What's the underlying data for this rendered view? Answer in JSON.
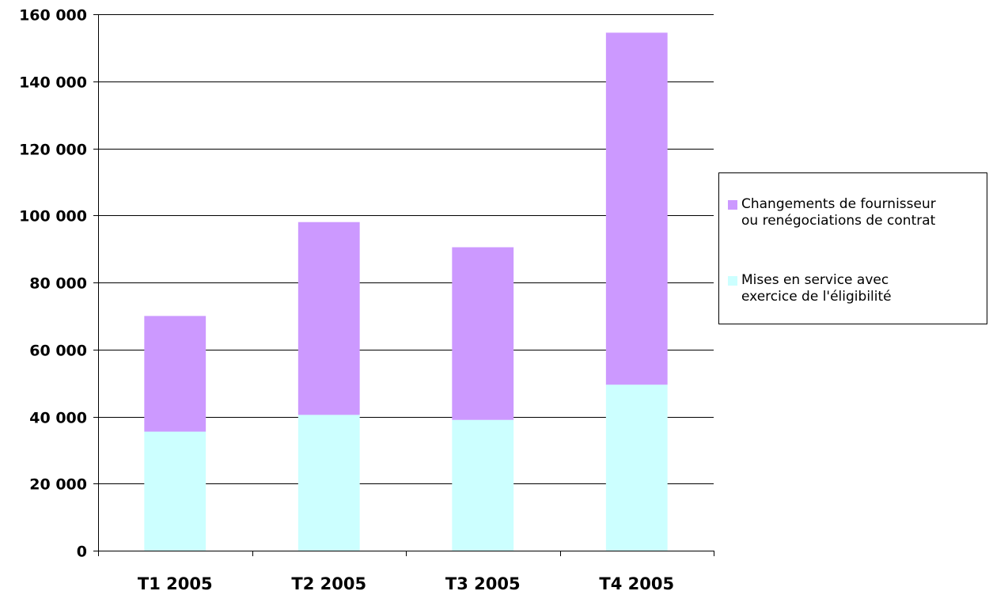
{
  "chart_data": {
    "type": "bar",
    "stacked": true,
    "categories": [
      "T1 2005",
      "T2 2005",
      "T3 2005",
      "T4 2005"
    ],
    "series": [
      {
        "name": "Mises en service avec\nexercice de l'éligibilité",
        "color": "#ccffff",
        "values": [
          35500,
          40500,
          39000,
          49500
        ]
      },
      {
        "name": "Changements de fournisseur\nou renégociations de contrat",
        "color": "#cc99ff",
        "values": [
          34500,
          57500,
          51500,
          105000
        ]
      }
    ],
    "ylim": [
      0,
      160000
    ],
    "yticks": [
      0,
      20000,
      40000,
      60000,
      80000,
      100000,
      120000,
      140000,
      160000
    ],
    "ytick_labels": [
      "0",
      "20 000",
      "40 000",
      "60 000",
      "80 000",
      "100 000",
      "120 000",
      "140 000",
      "160 000"
    ],
    "grid": true,
    "legend_position": "right",
    "title": "",
    "xlabel": "",
    "ylabel": ""
  }
}
